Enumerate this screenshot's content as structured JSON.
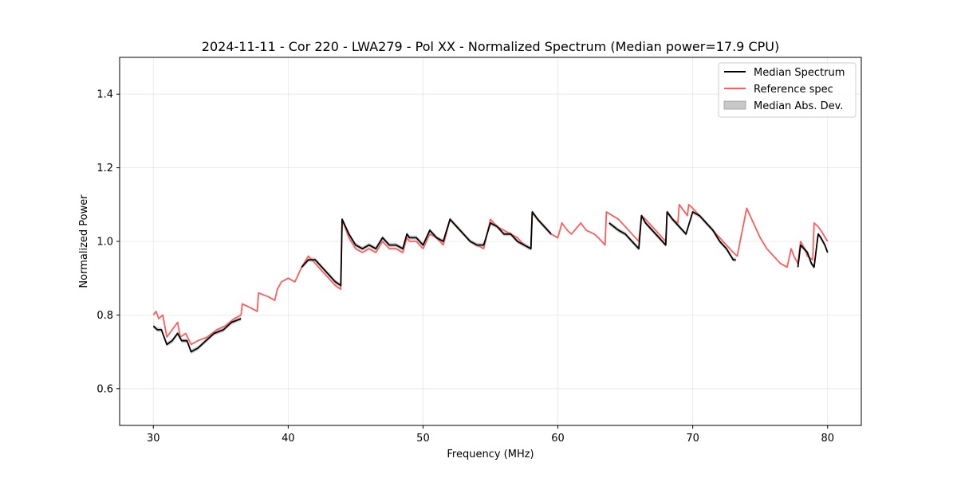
{
  "chart_data": {
    "type": "line",
    "title": "2024-11-11 - Cor 220 - LWA279 - Pol XX - Normalized Spectrum (Median power=17.9 CPU)",
    "xlabel": "Frequency (MHz)",
    "ylabel": "Normalized Power",
    "xlim": [
      27.5,
      82.5
    ],
    "ylim": [
      0.5,
      1.5
    ],
    "xticks": [
      30,
      40,
      50,
      60,
      70,
      80
    ],
    "yticks": [
      0.6,
      0.8,
      1.0,
      1.2,
      1.4
    ],
    "xtick_labels": [
      "30",
      "40",
      "50",
      "60",
      "70",
      "80"
    ],
    "ytick_labels": [
      "0.6",
      "0.8",
      "1.0",
      "1.2",
      "1.4"
    ],
    "grid": true,
    "legend_position": "top-right",
    "colors": {
      "median": "#000000",
      "reference": "#ff5c5c",
      "mad": "#c8c8c8"
    },
    "series": [
      {
        "name": "Median Spectrum",
        "x": [
          30.0,
          30.3,
          30.6,
          31.0,
          31.4,
          31.8,
          32.1,
          32.5,
          32.8,
          33.3,
          33.9,
          34.5,
          35.2,
          35.8,
          36.5,
          null,
          41.0,
          41.5,
          42.0,
          42.5,
          43.0,
          43.5,
          43.9,
          44.0,
          44.5,
          45.0,
          45.5,
          46.0,
          46.5,
          47.0,
          47.5,
          48.0,
          48.5,
          48.8,
          49.0,
          49.5,
          50.0,
          50.5,
          51.0,
          51.5,
          52.0,
          52.5,
          53.0,
          53.5,
          54.0,
          54.5,
          55.0,
          55.5,
          56.0,
          56.5,
          57.0,
          57.5,
          58.0,
          58.1,
          58.5,
          59.0,
          59.5,
          null,
          63.8,
          64.5,
          65.0,
          65.5,
          66.0,
          66.2,
          66.5,
          67.0,
          67.5,
          68.0,
          68.1,
          68.5,
          69.0,
          69.5,
          70.0,
          70.5,
          71.0,
          71.5,
          72.0,
          72.5,
          73.0,
          73.2,
          null,
          77.8,
          78.0,
          78.5,
          78.8,
          79.0,
          79.3,
          79.5,
          79.8,
          80.0
        ],
        "y": [
          0.77,
          0.76,
          0.76,
          0.72,
          0.73,
          0.75,
          0.73,
          0.73,
          0.7,
          0.71,
          0.73,
          0.75,
          0.76,
          0.78,
          0.79,
          null,
          0.93,
          0.95,
          0.95,
          0.93,
          0.91,
          0.89,
          0.88,
          1.06,
          1.02,
          0.99,
          0.98,
          0.99,
          0.98,
          1.01,
          0.99,
          0.99,
          0.98,
          1.02,
          1.01,
          1.01,
          0.99,
          1.03,
          1.01,
          1.0,
          1.06,
          1.04,
          1.02,
          1.0,
          0.99,
          0.99,
          1.05,
          1.04,
          1.02,
          1.02,
          1.0,
          0.99,
          0.98,
          1.08,
          1.06,
          1.04,
          1.02,
          null,
          1.05,
          1.03,
          1.02,
          1.0,
          0.98,
          1.07,
          1.05,
          1.03,
          1.01,
          0.99,
          1.08,
          1.06,
          1.04,
          1.02,
          1.08,
          1.07,
          1.05,
          1.03,
          1.0,
          0.98,
          0.95,
          0.95,
          null,
          0.93,
          0.99,
          0.97,
          0.94,
          0.93,
          1.02,
          1.01,
          0.99,
          0.97
        ]
      },
      {
        "name": "Reference spec",
        "x": [
          30.0,
          30.2,
          30.4,
          30.7,
          31.0,
          31.4,
          31.8,
          32.0,
          32.4,
          32.8,
          33.3,
          34.0,
          34.7,
          35.3,
          36.0,
          36.5,
          36.6,
          37.2,
          37.7,
          37.8,
          38.5,
          39.0,
          39.2,
          39.5,
          40.0,
          40.5,
          41.0,
          41.5,
          42.0,
          42.5,
          43.0,
          43.5,
          43.9,
          44.0,
          44.5,
          45.0,
          45.5,
          46.0,
          46.5,
          47.0,
          47.5,
          48.0,
          48.5,
          48.8,
          49.0,
          49.5,
          50.0,
          50.5,
          51.0,
          51.5,
          52.0,
          52.5,
          53.0,
          53.5,
          54.0,
          54.5,
          55.0,
          55.5,
          56.0,
          56.5,
          57.0,
          57.5,
          58.0,
          58.1,
          58.5,
          59.0,
          59.5,
          60.0,
          60.3,
          60.7,
          61.0,
          61.7,
          62.1,
          62.7,
          63.0,
          63.5,
          63.6,
          64.5,
          65.0,
          65.5,
          66.0,
          66.2,
          66.5,
          67.0,
          67.5,
          68.0,
          68.1,
          68.5,
          68.9,
          69.0,
          69.6,
          69.7,
          70.0,
          70.5,
          71.0,
          71.5,
          72.0,
          72.5,
          73.0,
          73.3,
          74.0,
          74.5,
          75.0,
          75.5,
          76.0,
          76.5,
          77.0,
          77.3,
          77.5,
          77.8,
          78.0,
          78.3,
          78.5,
          78.9,
          79.0,
          79.3,
          79.5,
          80.0
        ],
        "y": [
          0.8,
          0.81,
          0.79,
          0.8,
          0.74,
          0.76,
          0.78,
          0.74,
          0.75,
          0.72,
          0.73,
          0.74,
          0.76,
          0.77,
          0.79,
          0.8,
          0.83,
          0.82,
          0.81,
          0.86,
          0.85,
          0.84,
          0.87,
          0.89,
          0.9,
          0.89,
          0.93,
          0.96,
          0.94,
          0.92,
          0.9,
          0.88,
          0.87,
          1.06,
          1.01,
          0.98,
          0.97,
          0.98,
          0.97,
          1.0,
          0.98,
          0.98,
          0.97,
          1.01,
          1.0,
          1.0,
          0.98,
          1.02,
          1.01,
          0.99,
          1.06,
          1.04,
          1.02,
          1.0,
          0.99,
          0.98,
          1.06,
          1.04,
          1.03,
          1.02,
          1.01,
          0.99,
          0.98,
          1.08,
          1.06,
          1.04,
          1.02,
          1.01,
          1.05,
          1.03,
          1.02,
          1.05,
          1.03,
          1.02,
          1.01,
          0.99,
          1.08,
          1.06,
          1.04,
          1.02,
          1.0,
          1.07,
          1.06,
          1.04,
          1.02,
          1.0,
          1.08,
          1.06,
          1.05,
          1.1,
          1.07,
          1.1,
          1.09,
          1.07,
          1.05,
          1.03,
          1.01,
          0.99,
          0.97,
          0.96,
          1.09,
          1.05,
          1.01,
          0.98,
          0.96,
          0.94,
          0.93,
          0.98,
          0.96,
          0.94,
          1.0,
          0.98,
          0.96,
          0.95,
          1.05,
          1.04,
          1.03,
          1.0
        ]
      }
    ],
    "legend": [
      {
        "label": "Median Spectrum",
        "kind": "line",
        "color": "#000000"
      },
      {
        "label": "Reference spec",
        "kind": "line",
        "color": "#ff5c5c"
      },
      {
        "label": "Median Abs. Dev.",
        "kind": "patch",
        "color": "#c8c8c8"
      }
    ],
    "mad_band_halfwidth": 0.006
  }
}
